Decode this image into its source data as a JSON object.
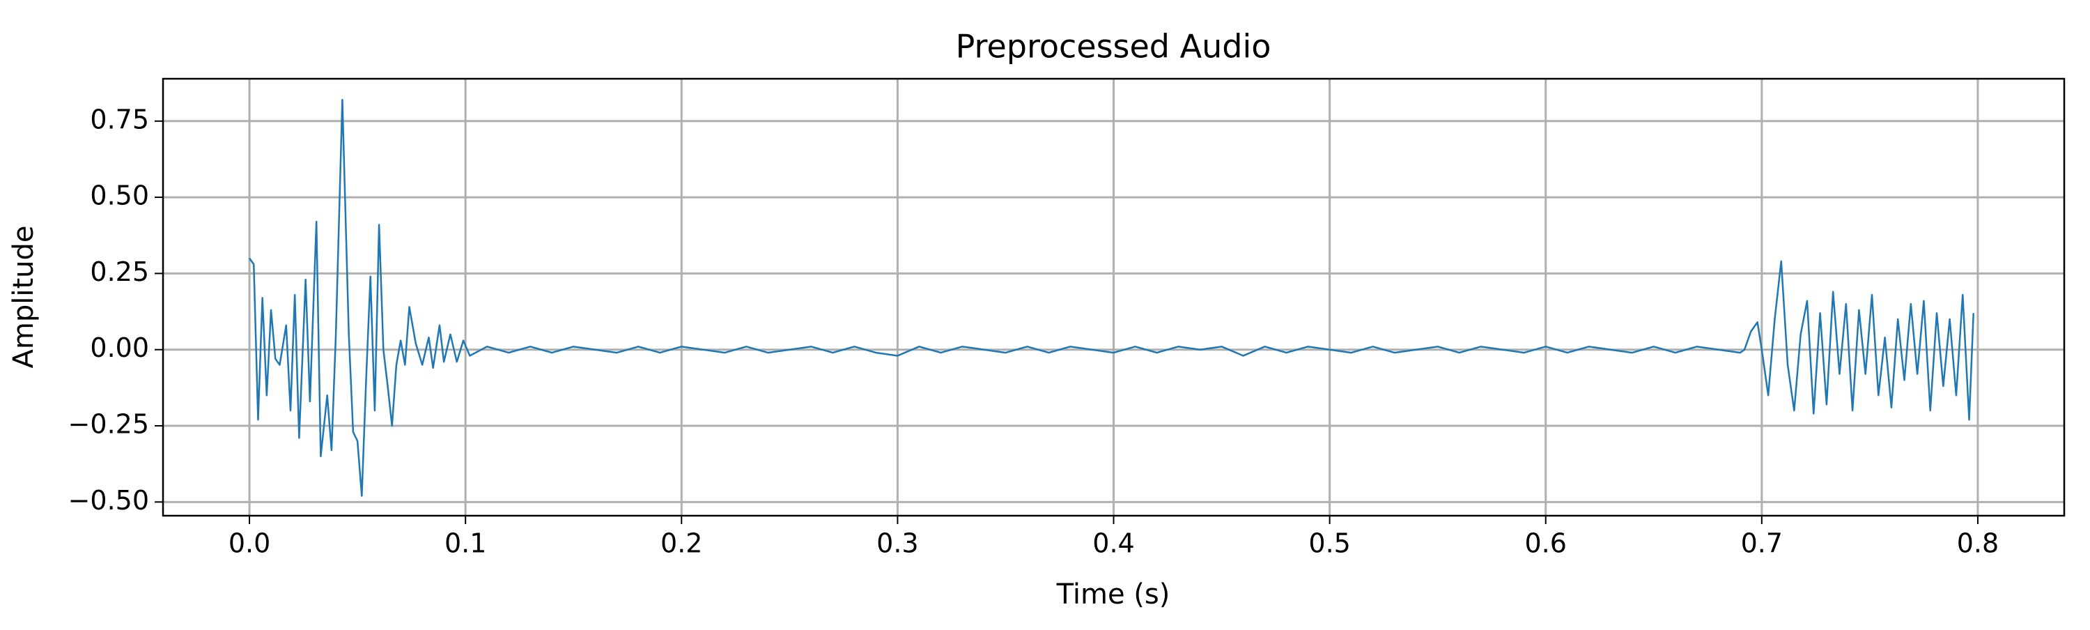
{
  "chart_data": {
    "type": "line",
    "title": "Preprocessed Audio",
    "x_label": "Time (s)",
    "y_label": "Amplitude",
    "grid": true,
    "color": "#1f77b4",
    "xlim": [
      -0.04,
      0.84
    ],
    "ylim": [
      -0.545,
      0.889
    ],
    "xticks": [
      {
        "value": 0,
        "label": "0.0"
      },
      0.1,
      0.2,
      0.3,
      0.4,
      0.5,
      0.6,
      0.7,
      0.8
    ],
    "yticks": [
      {
        "value": -0.5,
        "label": "−0.50"
      },
      {
        "value": -0.25,
        "label": "−0.25"
      },
      {
        "value": 0,
        "label": "0.00"
      },
      {
        "value": 0.25,
        "label": "0.25"
      },
      {
        "value": 0.5,
        "label": "0.50"
      },
      0.75
    ],
    "x": [
      0.0,
      0.002,
      0.004,
      0.006,
      0.008,
      0.01,
      0.012,
      0.014,
      0.017,
      0.019,
      0.021,
      0.023,
      0.026,
      0.028,
      0.031,
      0.033,
      0.036,
      0.038,
      0.04,
      0.043,
      0.046,
      0.048,
      0.05,
      0.052,
      0.054,
      0.056,
      0.058,
      0.06,
      0.062,
      0.064,
      0.066,
      0.068,
      0.07,
      0.072,
      0.074,
      0.077,
      0.08,
      0.083,
      0.085,
      0.088,
      0.09,
      0.093,
      0.096,
      0.099,
      0.102,
      0.11,
      0.12,
      0.13,
      0.14,
      0.15,
      0.16,
      0.17,
      0.18,
      0.19,
      0.2,
      0.21,
      0.22,
      0.23,
      0.24,
      0.25,
      0.26,
      0.27,
      0.28,
      0.29,
      0.3,
      0.31,
      0.32,
      0.33,
      0.34,
      0.35,
      0.36,
      0.37,
      0.38,
      0.39,
      0.4,
      0.41,
      0.42,
      0.43,
      0.44,
      0.45,
      0.46,
      0.47,
      0.48,
      0.49,
      0.5,
      0.51,
      0.52,
      0.53,
      0.54,
      0.55,
      0.56,
      0.57,
      0.58,
      0.59,
      0.6,
      0.61,
      0.62,
      0.63,
      0.64,
      0.65,
      0.66,
      0.67,
      0.68,
      0.69,
      0.692,
      0.695,
      0.698,
      0.7,
      0.703,
      0.706,
      0.709,
      0.712,
      0.715,
      0.718,
      0.721,
      0.724,
      0.727,
      0.73,
      0.733,
      0.736,
      0.739,
      0.742,
      0.745,
      0.748,
      0.751,
      0.754,
      0.757,
      0.76,
      0.763,
      0.766,
      0.769,
      0.772,
      0.775,
      0.778,
      0.781,
      0.784,
      0.787,
      0.79,
      0.793,
      0.796,
      0.798
    ],
    "values": [
      0.3,
      0.28,
      -0.23,
      0.17,
      -0.15,
      0.13,
      -0.03,
      -0.05,
      0.08,
      -0.2,
      0.18,
      -0.29,
      0.23,
      -0.17,
      0.42,
      -0.35,
      -0.15,
      -0.33,
      0.05,
      0.82,
      0.05,
      -0.27,
      -0.3,
      -0.48,
      -0.1,
      0.24,
      -0.2,
      0.41,
      0.0,
      -0.12,
      -0.25,
      -0.05,
      0.03,
      -0.05,
      0.14,
      0.02,
      -0.05,
      0.04,
      -0.06,
      0.08,
      -0.04,
      0.05,
      -0.04,
      0.03,
      -0.02,
      0.01,
      -0.01,
      0.01,
      -0.01,
      0.01,
      0.0,
      -0.01,
      0.01,
      -0.01,
      0.01,
      0.0,
      -0.01,
      0.01,
      -0.01,
      0.0,
      0.01,
      -0.01,
      0.01,
      -0.01,
      -0.02,
      0.01,
      -0.01,
      0.01,
      0.0,
      -0.01,
      0.01,
      -0.01,
      0.01,
      0.0,
      -0.01,
      0.01,
      -0.01,
      0.01,
      0.0,
      0.01,
      -0.02,
      0.01,
      -0.01,
      0.01,
      0.0,
      -0.01,
      0.01,
      -0.01,
      0.0,
      0.01,
      -0.01,
      0.01,
      0.0,
      -0.01,
      0.01,
      -0.01,
      0.01,
      0.0,
      -0.01,
      0.01,
      -0.01,
      0.01,
      0.0,
      -0.01,
      0.0,
      0.06,
      0.09,
      0.0,
      -0.15,
      0.1,
      0.29,
      -0.05,
      -0.2,
      0.05,
      0.16,
      -0.21,
      0.12,
      -0.18,
      0.19,
      -0.08,
      0.15,
      -0.2,
      0.13,
      -0.08,
      0.18,
      -0.15,
      0.04,
      -0.19,
      0.1,
      -0.1,
      0.15,
      -0.08,
      0.16,
      -0.2,
      0.12,
      -0.12,
      0.1,
      -0.15,
      0.18,
      -0.23,
      0.12
    ]
  }
}
